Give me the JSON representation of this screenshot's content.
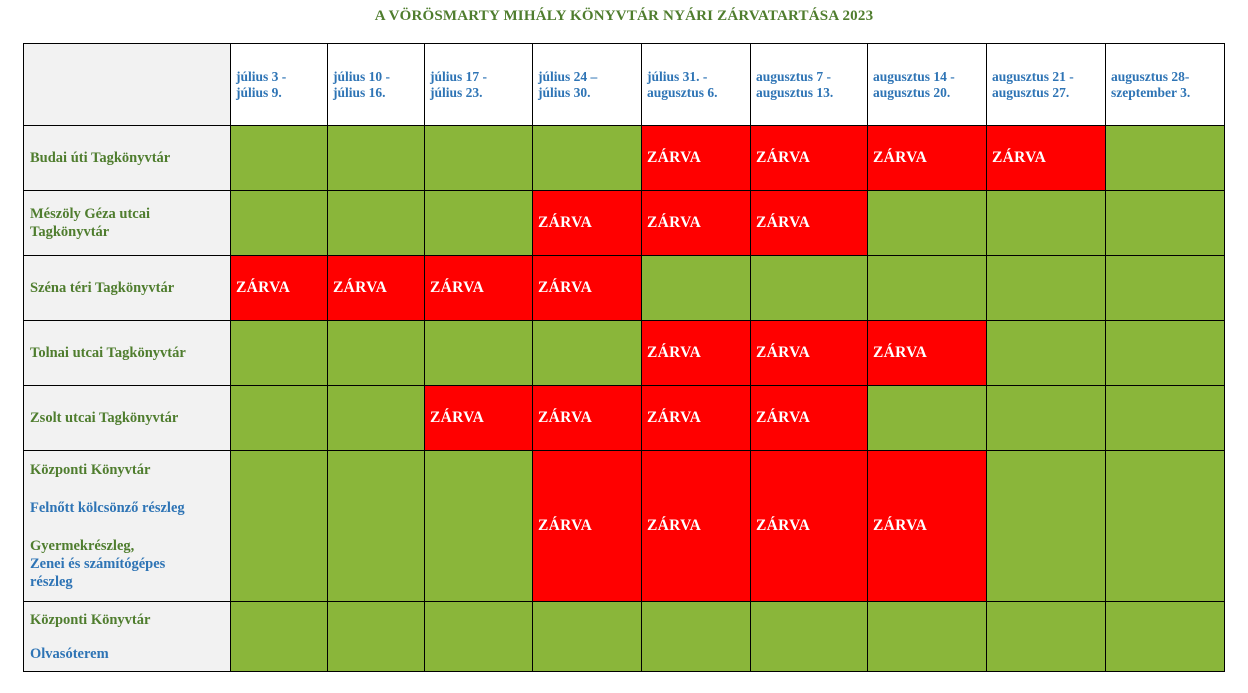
{
  "title": "A VÖRÖSMARTY MIHÁLY KÖNYVTÁR NYÁRI ZÁRVATARTÁSA 2023",
  "closed_label": "ZÁRVA",
  "colors": {
    "open": "#8ab63a",
    "closed": "#ff0000",
    "header_text": "#2e74b5",
    "label_text": "#4f7d2e"
  },
  "weeks": [
    {
      "line1": "július 3 -",
      "line2": "július 9."
    },
    {
      "line1": "július 10 -",
      "line2": "július 16."
    },
    {
      "line1": "július 17 -",
      "line2": "július 23."
    },
    {
      "line1": "július 24 –",
      "line2": "július 30."
    },
    {
      "line1": "július 31. -",
      "line2": "augusztus 6."
    },
    {
      "line1": "augusztus 7 -",
      "line2": "augusztus 13."
    },
    {
      "line1": "augusztus 14 -",
      "line2": "augusztus 20."
    },
    {
      "line1": "augusztus 21 -",
      "line2": "augusztus 27."
    },
    {
      "line1": "augusztus 28-",
      "line2": "szeptember 3."
    }
  ],
  "libraries": [
    {
      "name": "Budai úti Tagkönyvtár",
      "closed": [
        5,
        6,
        7,
        8
      ]
    },
    {
      "name_line1": "Mészöly Géza utcai",
      "name_line2": "Tagkönyvtár",
      "closed": [
        4,
        5,
        6
      ]
    },
    {
      "name": "Széna téri Tagkönyvtár",
      "closed": [
        1,
        2,
        3,
        4
      ]
    },
    {
      "name": "Tolnai utcai Tagkönyvtár",
      "closed": [
        5,
        6,
        7
      ]
    },
    {
      "name": "Zsolt utcai Tagkönyvtár",
      "closed": [
        3,
        4,
        5,
        6
      ]
    },
    {
      "name": "Központi Könyvtár",
      "sub1": "Felnőtt kölcsönző részleg",
      "sub2": "Gyermekrészleg,",
      "sub3": "Zenei és számítógépes",
      "sub4": "részleg",
      "closed": [
        4,
        5,
        6,
        7
      ]
    },
    {
      "name": "Központi Könyvtár",
      "sub1": "Olvasóterem",
      "closed": []
    }
  ]
}
